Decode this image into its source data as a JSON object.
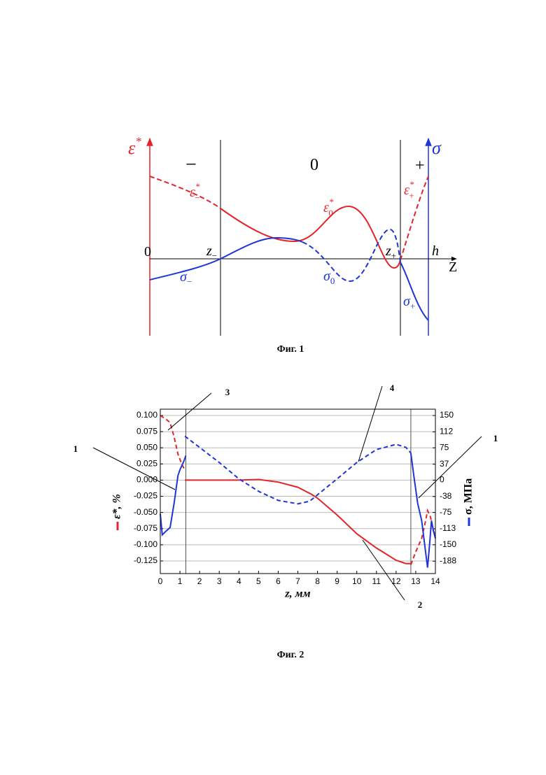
{
  "figure1": {
    "caption": "Фиг. 1",
    "labels": [
      {
        "text": "ε",
        "sup": "*"
      },
      {
        "text": "σ"
      },
      {
        "text": "−"
      },
      {
        "text": "0"
      },
      {
        "text": "+"
      },
      {
        "text": "0"
      },
      {
        "text": "z",
        "sub": "−"
      },
      {
        "text": "z",
        "sub": "+"
      },
      {
        "text": "h"
      },
      {
        "text": "Z"
      },
      {
        "text": "ε",
        "sup": "*",
        "sub": "−"
      },
      {
        "text": "ε",
        "sup": "*",
        "sub": "0"
      },
      {
        "text": "ε",
        "sup": "*",
        "sub": "+"
      },
      {
        "text": "σ",
        "sub": "−"
      },
      {
        "text": "σ",
        "sub": "0"
      },
      {
        "text": "σ",
        "sub": "+"
      }
    ]
  },
  "figure2": {
    "caption": "Фиг. 2",
    "callouts": [
      "1",
      "1",
      "2",
      "3",
      "4"
    ]
  },
  "chart_data": {
    "type": "line",
    "xlabel": "z, мм",
    "ylabel": "ε*, %",
    "y2label": "σ, МПа",
    "xlim": [
      0,
      14
    ],
    "xticks": [
      0,
      1,
      2,
      3,
      4,
      5,
      6,
      7,
      8,
      9,
      10,
      11,
      12,
      13,
      14
    ],
    "ylim": [
      -0.1445,
      0.1097
    ],
    "yticks": [
      {
        "value": 0.1,
        "label": "0.100"
      },
      {
        "value": 0.075,
        "label": "0.075"
      },
      {
        "value": 0.05,
        "label": "0.050"
      },
      {
        "value": 0.025,
        "label": "0.025"
      },
      {
        "value": 0,
        "label": "0.000"
      },
      {
        "value": -0.025,
        "label": "-0.025"
      },
      {
        "value": -0.05,
        "label": "-0.050"
      },
      {
        "value": -0.075,
        "label": "-0.075"
      },
      {
        "value": -0.1,
        "label": "-0.100"
      },
      {
        "value": -0.125,
        "label": "-0.125"
      }
    ],
    "y2lim": [
      -216.8,
      164.6
    ],
    "y2ticks": [
      150,
      112,
      75,
      37,
      0,
      -38,
      -75,
      -113,
      -150,
      -188
    ],
    "grid": true,
    "vlines": [
      1.3,
      12.75
    ],
    "series": [
      {
        "color": "#e3242b",
        "dashed": true,
        "axis": "y",
        "x": [
          0,
          0.1,
          0.3,
          0.5,
          0.7,
          0.9,
          1.1,
          1.25,
          null,
          12.75,
          13.0,
          13.3,
          13.5,
          13.6,
          13.75,
          13.9,
          14.0
        ],
        "values": [
          0.1,
          0.098,
          0.094,
          0.089,
          0.067,
          0.04,
          0.024,
          0.016,
          null,
          -0.131,
          -0.111,
          -0.09,
          -0.063,
          -0.047,
          -0.057,
          -0.079,
          -0.084
        ]
      },
      {
        "color": "#e3242b",
        "dashed": false,
        "axis": "y",
        "x": [
          1.25,
          2,
          3,
          4,
          5,
          6,
          7,
          7.7,
          8,
          9,
          10,
          11,
          12,
          12.5,
          12.75
        ],
        "values": [
          0,
          0,
          0,
          0,
          0.001,
          -0.003,
          -0.011,
          -0.022,
          -0.028,
          -0.054,
          -0.083,
          -0.105,
          -0.124,
          -0.129,
          -0.129
        ]
      },
      {
        "color": "#1f35d6",
        "dashed": false,
        "axis": "y2",
        "x": [
          0,
          0.1,
          0.3,
          0.5,
          0.7,
          0.8,
          0.9,
          1.0,
          1.2,
          1.3,
          null,
          12.75,
          12.9,
          13.1,
          13.3,
          13.5,
          13.6,
          13.7,
          13.8,
          13.9,
          14.0
        ],
        "values": [
          -78,
          -127,
          -118,
          -110,
          -54,
          -21,
          11,
          24,
          44,
          57,
          null,
          63,
          11,
          -54,
          -94,
          -167,
          -203,
          -151,
          -94,
          -118,
          -135
        ]
      },
      {
        "color": "#1f35d6",
        "dashed": true,
        "axis": "y2",
        "x": [
          1.25,
          2,
          3,
          4,
          5,
          6,
          7,
          7.6,
          8,
          9,
          10,
          11,
          12,
          12.5,
          12.75
        ],
        "values": [
          102,
          76,
          41,
          3,
          -26,
          -47,
          -55,
          -49,
          -34,
          3,
          41,
          71,
          83,
          76,
          63
        ]
      }
    ]
  }
}
